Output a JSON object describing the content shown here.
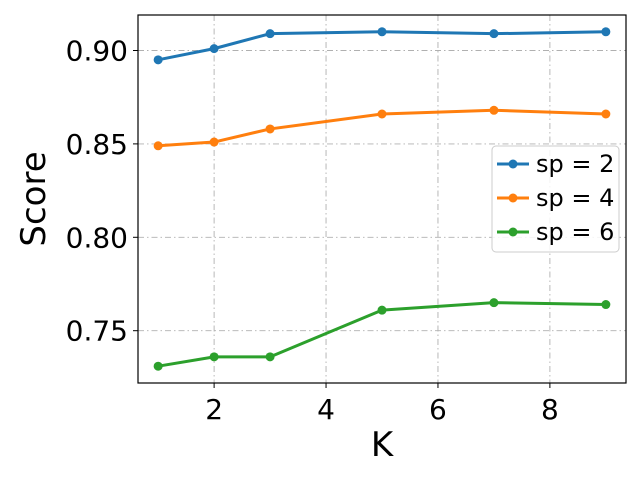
{
  "chart_data": {
    "type": "line",
    "title": "",
    "xlabel": "K",
    "ylabel": "Score",
    "xlim": [
      0.64,
      9.36
    ],
    "ylim": [
      0.722,
      0.919
    ],
    "xticks": [
      2,
      4,
      6,
      8
    ],
    "xtick_labels": [
      "2",
      "4",
      "6",
      "8"
    ],
    "yticks": [
      0.75,
      0.8,
      0.85,
      0.9
    ],
    "ytick_labels": [
      "0.75",
      "0.80",
      "0.85",
      "0.90"
    ],
    "grid": true,
    "grid_style": "dash-dot",
    "legend_position": "center-right",
    "x": [
      1,
      2,
      3,
      5,
      7,
      9
    ],
    "series": [
      {
        "name": "sp = 2",
        "color": "#1f77b4",
        "values": [
          0.895,
          0.901,
          0.909,
          0.91,
          0.909,
          0.91
        ]
      },
      {
        "name": "sp = 4",
        "color": "#ff7f0e",
        "values": [
          0.849,
          0.851,
          0.858,
          0.866,
          0.868,
          0.866
        ]
      },
      {
        "name": "sp = 6",
        "color": "#2ca02c",
        "values": [
          0.731,
          0.736,
          0.736,
          0.761,
          0.765,
          0.764
        ]
      }
    ]
  }
}
